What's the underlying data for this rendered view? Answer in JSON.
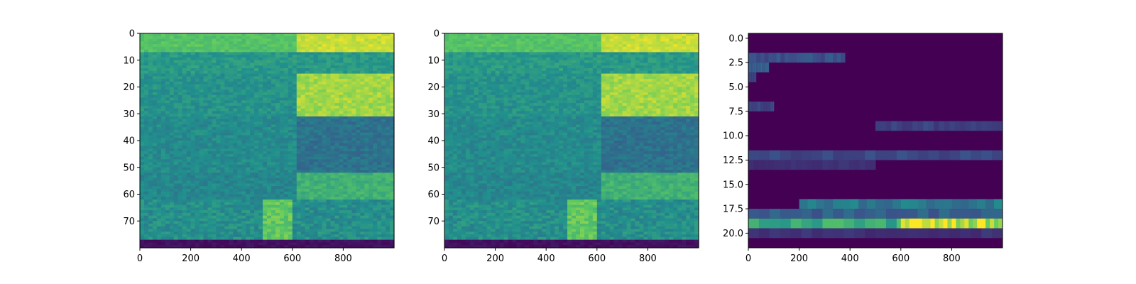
{
  "figure": {
    "background": "#ffffff",
    "colormap": "viridis",
    "colormap_stops": [
      "#440154",
      "#3b528b",
      "#21908d",
      "#5dc962",
      "#fde725"
    ]
  },
  "chart_data": [
    {
      "type": "heatmap",
      "title": "",
      "xlabel": "",
      "ylabel": "",
      "xlim": [
        0,
        1000
      ],
      "ylim": [
        80,
        0
      ],
      "n_rows": 80,
      "n_cols": 1000,
      "xticks": [
        0,
        200,
        400,
        600,
        800
      ],
      "xtick_labels": [
        "0",
        "200",
        "400",
        "600",
        "800"
      ],
      "yticks": [
        0,
        10,
        20,
        30,
        40,
        50,
        60,
        70
      ],
      "ytick_labels": [
        "0",
        "10",
        "20",
        "30",
        "40",
        "50",
        "60",
        "70"
      ],
      "bright_band_rows": [
        15,
        30
      ],
      "low_rows_from": 77,
      "segment_boundary_x": 610,
      "value_range": [
        0,
        1
      ]
    },
    {
      "type": "heatmap",
      "title": "",
      "xlabel": "",
      "ylabel": "",
      "xlim": [
        0,
        1000
      ],
      "ylim": [
        80,
        0
      ],
      "n_rows": 80,
      "n_cols": 1000,
      "xticks": [
        0,
        200,
        400,
        600,
        800
      ],
      "xtick_labels": [
        "0",
        "200",
        "400",
        "600",
        "800"
      ],
      "yticks": [
        0,
        10,
        20,
        30,
        40,
        50,
        60,
        70
      ],
      "ytick_labels": [
        "0",
        "10",
        "20",
        "30",
        "40",
        "50",
        "60",
        "70"
      ],
      "bright_band_rows": [
        15,
        30
      ],
      "low_rows_from": 77,
      "segment_boundary_x": 610,
      "value_range": [
        0,
        1
      ]
    },
    {
      "type": "heatmap",
      "title": "",
      "xlabel": "",
      "ylabel": "",
      "xlim": [
        0,
        1000
      ],
      "ylim": [
        21.5,
        -0.5
      ],
      "n_rows": 22,
      "n_cols": 1000,
      "xticks": [
        0,
        200,
        400,
        600,
        800
      ],
      "xtick_labels": [
        "0",
        "200",
        "400",
        "600",
        "800"
      ],
      "yticks": [
        0,
        2.5,
        5,
        7.5,
        10,
        12.5,
        15,
        17.5,
        20
      ],
      "ytick_labels": [
        "0.0",
        "2.5",
        "5.0",
        "7.5",
        "10.0",
        "12.5",
        "15.0",
        "17.5",
        "20.0"
      ],
      "value_range": [
        0,
        1
      ],
      "active_rows": [
        {
          "row": 2,
          "from": 0,
          "to": 380,
          "level": 0.25
        },
        {
          "row": 3,
          "from": 0,
          "to": 80,
          "level": 0.3
        },
        {
          "row": 4,
          "from": 0,
          "to": 30,
          "level": 0.2
        },
        {
          "row": 7,
          "from": 0,
          "to": 100,
          "level": 0.2
        },
        {
          "row": 9,
          "from": 500,
          "to": 1000,
          "level": 0.2
        },
        {
          "row": 12,
          "from": 0,
          "to": 1000,
          "level": 0.22
        },
        {
          "row": 13,
          "from": 0,
          "to": 500,
          "level": 0.15
        },
        {
          "row": 17,
          "from": 200,
          "to": 1000,
          "level": 0.4
        },
        {
          "row": 18,
          "from": 0,
          "to": 1000,
          "level": 0.3
        },
        {
          "row": 19,
          "from": 0,
          "to": 1000,
          "level": 0.6
        },
        {
          "row": 19,
          "from": 600,
          "to": 1000,
          "level": 0.95
        },
        {
          "row": 20,
          "from": 0,
          "to": 1000,
          "level": 0.15
        }
      ]
    }
  ]
}
